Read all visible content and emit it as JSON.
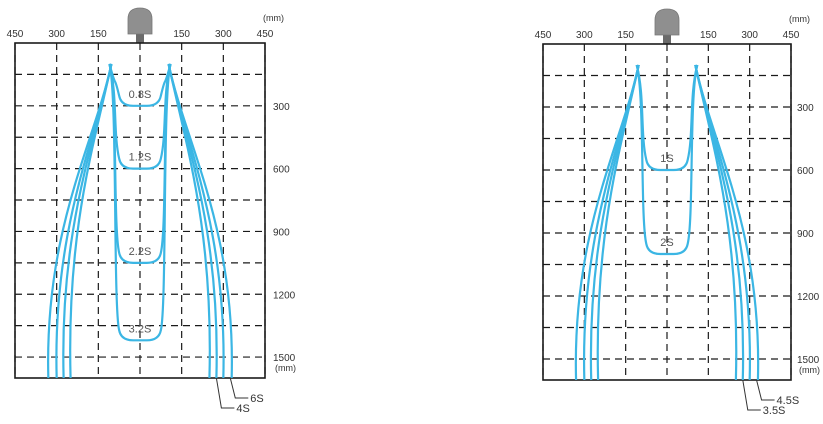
{
  "colors": {
    "beam": "#3bb6e4",
    "grid": "#1a1a1a",
    "sensor_body": "#8f8f8f",
    "sensor_stem": "#6a6a6a",
    "text": "#333333",
    "curve_label": "#555555"
  },
  "diagrams": [
    {
      "unit_top": "(mm)",
      "unit_bottom": "(mm)",
      "x_ticks": [
        {
          "value": -450,
          "label": "450"
        },
        {
          "value": -300,
          "label": "300"
        },
        {
          "value": -150,
          "label": "150"
        },
        {
          "value": 150,
          "label": "150"
        },
        {
          "value": 300,
          "label": "300"
        },
        {
          "value": 450,
          "label": "450"
        }
      ],
      "y_ticks": [
        {
          "value": 300,
          "label": "300"
        },
        {
          "value": 600,
          "label": "600"
        },
        {
          "value": 900,
          "label": "900"
        },
        {
          "value": 1200,
          "label": "1200"
        },
        {
          "value": 1500,
          "label": "1500"
        }
      ],
      "inner_curves": [
        {
          "label": "0.8S",
          "depth": 300
        },
        {
          "label": "1.2S",
          "depth": 600
        },
        {
          "label": "2.2S",
          "depth": 1050
        },
        {
          "label": "3.2S",
          "depth": 1420
        }
      ],
      "outer_curves": [
        {
          "label": "6S",
          "bottom_offset": 280
        },
        {
          "label": "4S",
          "bottom_offset": 330
        }
      ]
    },
    {
      "unit_top": "(mm)",
      "unit_bottom": "(mm)",
      "x_ticks": [
        {
          "value": -450,
          "label": "450"
        },
        {
          "value": -300,
          "label": "300"
        },
        {
          "value": -150,
          "label": "150"
        },
        {
          "value": 150,
          "label": "150"
        },
        {
          "value": 300,
          "label": "300"
        },
        {
          "value": 450,
          "label": "450"
        }
      ],
      "y_ticks": [
        {
          "value": 300,
          "label": "300"
        },
        {
          "value": 600,
          "label": "600"
        },
        {
          "value": 900,
          "label": "900"
        },
        {
          "value": 1200,
          "label": "1200"
        },
        {
          "value": 1500,
          "label": "1500"
        }
      ],
      "inner_curves": [
        {
          "label": "1S",
          "depth": 600
        },
        {
          "label": "2S",
          "depth": 1000
        }
      ],
      "outer_curves": [
        {
          "label": "4.5S",
          "bottom_offset": 300
        },
        {
          "label": "3.5S",
          "bottom_offset": 350
        }
      ]
    }
  ]
}
